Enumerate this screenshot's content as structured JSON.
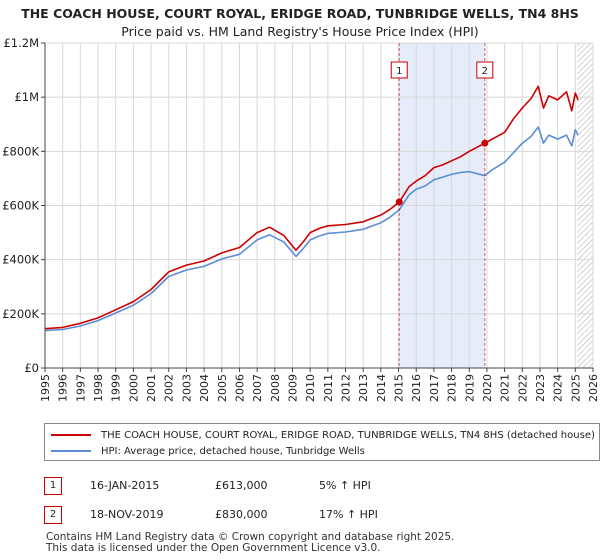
{
  "title": "THE COACH HOUSE, COURT ROYAL, ERIDGE ROAD, TUNBRIDGE WELLS, TN4 8HS",
  "subtitle": "Price paid vs. HM Land Registry's House Price Index (HPI)",
  "colors": {
    "property": "#cc0000",
    "hpi": "#5b8ed6",
    "shade": "#e6ecfa",
    "grid": "#d8d8d8",
    "marker_line": "#cc0000"
  },
  "chart_data": {
    "type": "line",
    "title": "Price paid vs. HM Land Registry's House Price Index (HPI)",
    "xlim": [
      1995,
      2026
    ],
    "ylim": [
      0,
      1200000
    ],
    "x_ticks": [
      "1995",
      "1996",
      "1997",
      "1998",
      "1999",
      "2000",
      "2001",
      "2002",
      "2003",
      "2004",
      "2005",
      "2006",
      "2007",
      "2008",
      "2009",
      "2010",
      "2011",
      "2012",
      "2013",
      "2014",
      "2015",
      "2016",
      "2017",
      "2018",
      "2019",
      "2020",
      "2021",
      "2022",
      "2023",
      "2024",
      "2025",
      "2026"
    ],
    "y_ticks": [
      {
        "value": 0,
        "label": "£0"
      },
      {
        "value": 200000,
        "label": "£200K"
      },
      {
        "value": 400000,
        "label": "£400K"
      },
      {
        "value": 600000,
        "label": "£600K"
      },
      {
        "value": 800000,
        "label": "£800K"
      },
      {
        "value": 1000000,
        "label": "£1M"
      },
      {
        "value": 1200000,
        "label": "£1.2M"
      }
    ],
    "grid": true,
    "shaded_span": [
      2015.04,
      2019.88
    ],
    "future_hatch_from": 2025.1,
    "series": [
      {
        "name": "THE COACH HOUSE, COURT ROYAL, ERIDGE ROAD, TUNBRIDGE WELLS, TN4 8HS (detached house)",
        "key": "property",
        "x": [
          1995,
          1996,
          1997,
          1998,
          1999,
          2000,
          2001,
          2002,
          2003,
          2004,
          2005,
          2006,
          2007,
          2007.7,
          2008.5,
          2009.2,
          2009.6,
          2010,
          2010.5,
          2011,
          2012,
          2013,
          2014,
          2014.5,
          2015.04,
          2015.6,
          2016,
          2016.5,
          2017,
          2017.5,
          2018,
          2018.5,
          2019,
          2019.88,
          2020.3,
          2021,
          2021.5,
          2022,
          2022.5,
          2022.9,
          2023.2,
          2023.5,
          2024,
          2024.5,
          2024.8,
          2025.0,
          2025.15
        ],
        "y": [
          145000,
          150000,
          165000,
          185000,
          215000,
          245000,
          290000,
          355000,
          380000,
          395000,
          425000,
          445000,
          500000,
          520000,
          490000,
          435000,
          465000,
          500000,
          515000,
          525000,
          530000,
          540000,
          565000,
          585000,
          613000,
          670000,
          690000,
          710000,
          740000,
          750000,
          765000,
          780000,
          800000,
          830000,
          845000,
          870000,
          920000,
          960000,
          995000,
          1040000,
          960000,
          1005000,
          990000,
          1020000,
          950000,
          1015000,
          990000
        ]
      },
      {
        "name": "HPI: Average price, detached house, Tunbridge Wells",
        "key": "hpi",
        "x": [
          1995,
          1996,
          1997,
          1998,
          1999,
          2000,
          2001,
          2002,
          2003,
          2004,
          2005,
          2006,
          2007,
          2007.7,
          2008.5,
          2009.2,
          2009.6,
          2010,
          2010.5,
          2011,
          2012,
          2013,
          2014,
          2014.5,
          2015.04,
          2015.6,
          2016,
          2016.5,
          2017,
          2017.5,
          2018,
          2018.5,
          2019,
          2019.88,
          2020.3,
          2021,
          2021.5,
          2022,
          2022.5,
          2022.9,
          2023.2,
          2023.5,
          2024,
          2024.5,
          2024.8,
          2025.0,
          2025.15
        ],
        "y": [
          138000,
          142000,
          155000,
          175000,
          203000,
          232000,
          275000,
          338000,
          362000,
          375000,
          403000,
          420000,
          473000,
          492000,
          466000,
          412000,
          440000,
          473000,
          487000,
          497000,
          502000,
          512000,
          536000,
          556000,
          584000,
          640000,
          660000,
          672000,
          695000,
          705000,
          715000,
          722000,
          725000,
          710000,
          732000,
          760000,
          795000,
          830000,
          855000,
          890000,
          830000,
          860000,
          845000,
          860000,
          820000,
          880000,
          860000
        ]
      }
    ],
    "transactions": [
      {
        "label": "1",
        "x": 2015.04,
        "y": 613000
      },
      {
        "label": "2",
        "x": 2019.88,
        "y": 830000
      }
    ]
  },
  "legend": {
    "property_label": "THE COACH HOUSE, COURT ROYAL, ERIDGE ROAD, TUNBRIDGE WELLS, TN4 8HS (detached house)",
    "hpi_label": "HPI: Average price, detached house, Tunbridge Wells"
  },
  "transactions_table": [
    {
      "num": "1",
      "date": "16-JAN-2015",
      "price": "£613,000",
      "hpi": "5% ↑ HPI"
    },
    {
      "num": "2",
      "date": "18-NOV-2019",
      "price": "£830,000",
      "hpi": "17% ↑ HPI"
    }
  ],
  "footer": {
    "line1": "Contains HM Land Registry data © Crown copyright and database right 2025.",
    "line2": "This data is licensed under the Open Government Licence v3.0."
  }
}
